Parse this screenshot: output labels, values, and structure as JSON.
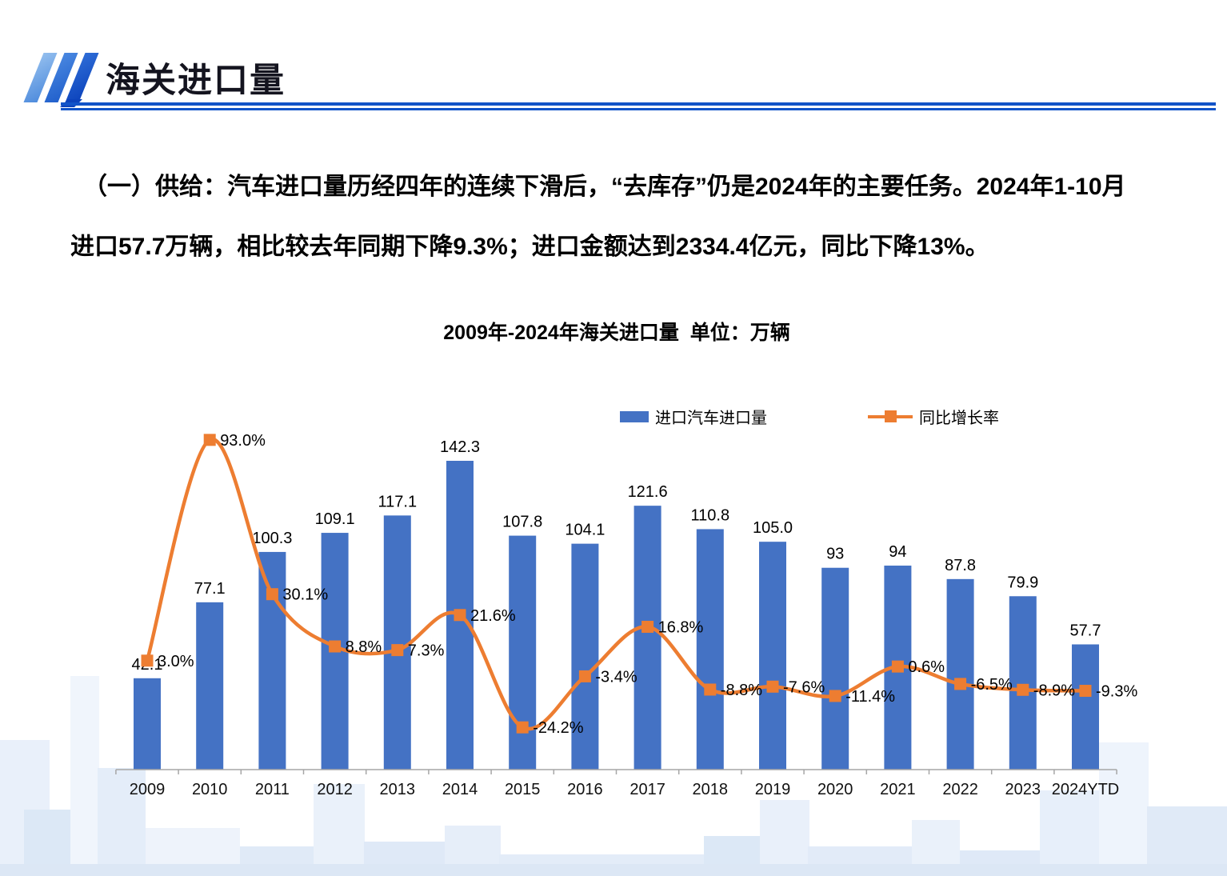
{
  "header": {
    "title": "海关进口量"
  },
  "body_text": {
    "lines": [
      "（一）供给：汽车进口量历经四年的连续下滑后，“去库存”仍是2024年的主要任务。2024年1-10月",
      "进口57.7万辆，相比较去年同期下降9.3%；进口金额达到2334.4亿元，同比下降13%。"
    ]
  },
  "chart": {
    "title": "2009年-2024年海关进口量  单位：万辆",
    "legend": [
      {
        "label": "进口汽车进口量",
        "type": "bar",
        "color": "#4472C4"
      },
      {
        "label": "同比增长率",
        "type": "line",
        "color": "#ED7D31"
      }
    ]
  },
  "chart_data": {
    "type": "bar",
    "title": "2009年-2024年海关进口量  单位：万辆",
    "categories": [
      "2009",
      "2010",
      "2011",
      "2012",
      "2013",
      "2014",
      "2015",
      "2016",
      "2017",
      "2018",
      "2019",
      "2020",
      "2021",
      "2022",
      "2023",
      "2024YTD"
    ],
    "series": [
      {
        "name": "进口汽车进口量",
        "type": "bar",
        "values": [
          42.1,
          77.1,
          100.3,
          109.1,
          117.1,
          142.3,
          107.8,
          104.1,
          121.6,
          110.8,
          105.0,
          93,
          94,
          87.8,
          79.9,
          57.7
        ],
        "labels": [
          "42.1",
          "77.1",
          "100.3",
          "109.1",
          "117.1",
          "142.3",
          "107.8",
          "104.1",
          "121.6",
          "110.8",
          "105.0",
          "93",
          "94",
          "87.8",
          "79.9",
          "57.7"
        ]
      },
      {
        "name": "同比增长率",
        "type": "line",
        "values": [
          3.0,
          93.0,
          30.1,
          8.8,
          7.3,
          21.6,
          -24.2,
          -3.4,
          16.8,
          -8.8,
          -7.6,
          -11.4,
          0.6,
          -6.5,
          -8.9,
          -9.3
        ],
        "labels": [
          "3.0%",
          "93.0%",
          "30.1%",
          "8.8%",
          "7.3%",
          "21.6%",
          "-24.2%",
          "-3.4%",
          "16.8%",
          "-8.8%",
          "-7.6%",
          "-11.4%",
          "0.6%",
          "-6.5%",
          "-8.9%",
          "-9.3%"
        ]
      }
    ],
    "ylabel": "万辆",
    "grid": false,
    "legend_position": "top",
    "colors": {
      "bar": "#4472C4",
      "line": "#ED7D31",
      "axis": "#A6A6A6",
      "label": "#000000"
    }
  }
}
